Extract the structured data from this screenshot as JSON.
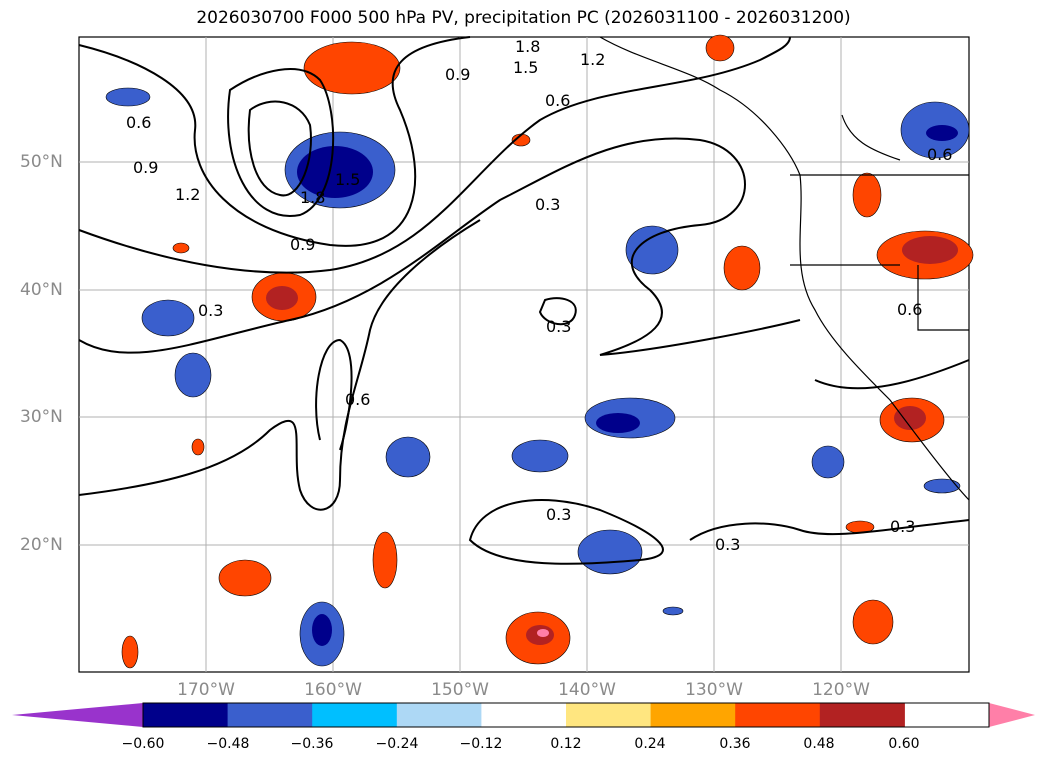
{
  "title": "2026030700 F000 500 hPa PV, precipitation PC (2026031100 - 2026031200)",
  "lat_labels": [
    "50°N",
    "40°N",
    "30°N",
    "20°N"
  ],
  "lon_labels": [
    "170°W",
    "160°W",
    "150°W",
    "140°W",
    "130°W",
    "120°W"
  ],
  "contour_labels": [
    "1.8",
    "1.5",
    "1.2",
    "0.9",
    "0.6",
    "0.3",
    "0.6",
    "0.9",
    "1.2",
    "0.6",
    "0.3",
    "0.3",
    "0.6",
    "0.3",
    "0.3",
    "0.3",
    "0.6",
    "0.9",
    "1.8",
    "1.5"
  ],
  "colorbar": {
    "ticks": [
      "−0.60",
      "−0.48",
      "−0.36",
      "−0.24",
      "−0.12",
      "0.12",
      "0.24",
      "0.36",
      "0.48",
      "0.60"
    ],
    "colors": [
      "#9933cc",
      "#00008b",
      "#3a5fcd",
      "#00bfff",
      "#add8f5",
      "#ffffff",
      "#ffe680",
      "#ffa500",
      "#ff4500",
      "#b22222",
      "#ff7fa8"
    ]
  }
}
